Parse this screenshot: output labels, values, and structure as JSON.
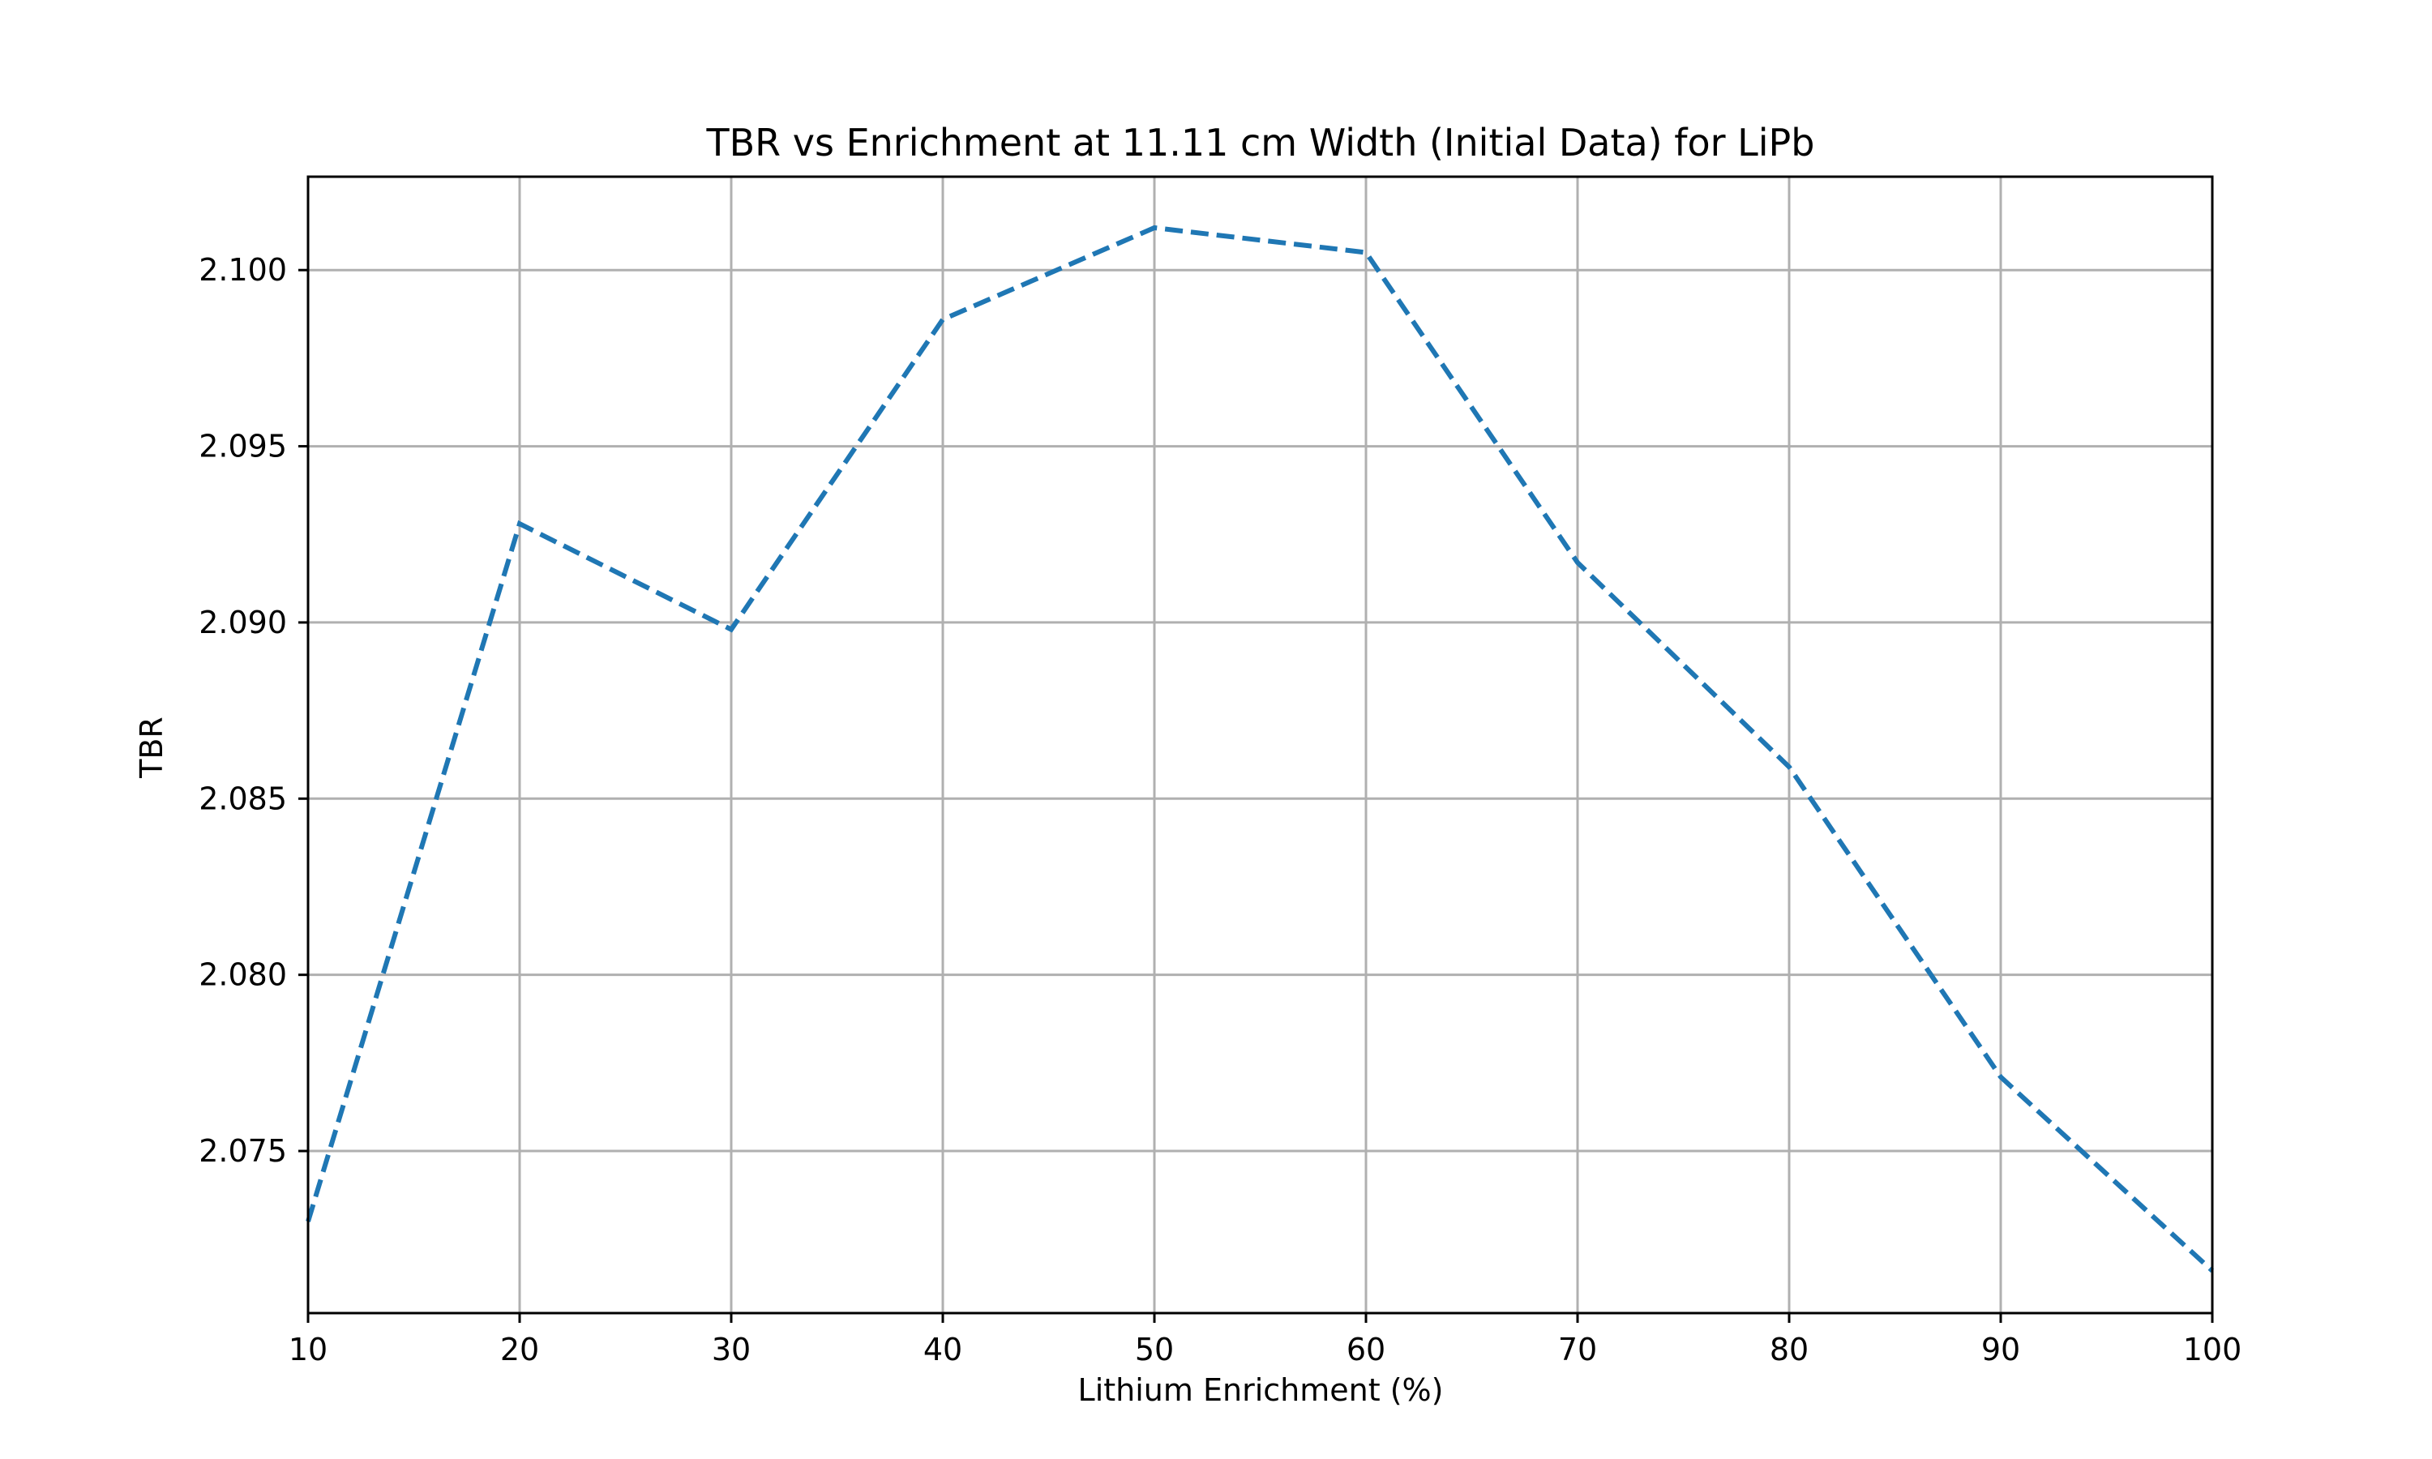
{
  "chart_data": {
    "type": "line",
    "title": "TBR vs Enrichment at 11.11 cm Width (Initial Data) for LiPb",
    "xlabel": "Lithium Enrichment (%)",
    "ylabel": "TBR",
    "x": [
      10,
      20,
      30,
      40,
      50,
      60,
      70,
      80,
      90,
      100
    ],
    "series": [
      {
        "values": [
          2.073,
          2.0928,
          2.0898,
          2.0986,
          2.1012,
          2.1005,
          2.0917,
          2.0859,
          2.0771,
          2.0716
        ],
        "color": "#1f77b4",
        "line_style": "dashed"
      }
    ],
    "xlim": [
      10,
      100
    ],
    "ylim": [
      2.0704,
      2.10265
    ],
    "xticks": [
      "10",
      "20",
      "30",
      "40",
      "50",
      "60",
      "70",
      "80",
      "90",
      "100"
    ],
    "xtick_values": [
      10,
      20,
      30,
      40,
      50,
      60,
      70,
      80,
      90,
      100
    ],
    "yticks": [
      "2.075",
      "2.080",
      "2.085",
      "2.090",
      "2.095",
      "2.100"
    ],
    "ytick_values": [
      2.075,
      2.08,
      2.085,
      2.09,
      2.095,
      2.1
    ],
    "grid": true,
    "legend": "none",
    "colors": {
      "line": "#1f77b4",
      "grid": "#b0b0b0",
      "axes": "#000000",
      "background": "#ffffff"
    }
  }
}
